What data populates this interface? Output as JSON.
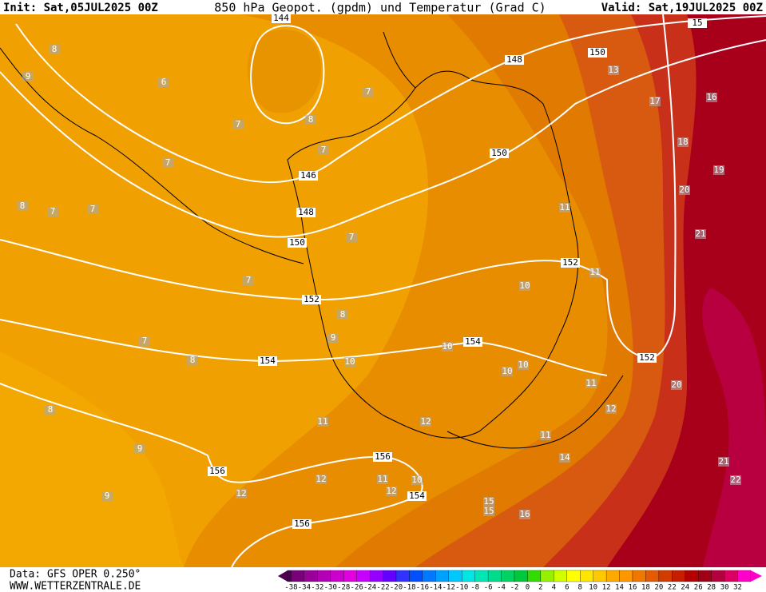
{
  "header": {
    "init": "Init: Sat,05JUL2025 00Z",
    "title": "850 hPa Geopot. (gpdm) und Temperatur (Grad C)",
    "valid": "Valid: Sat,19JUL2025 00Z"
  },
  "map": {
    "geopotential_labels": [
      144,
      148,
      150,
      146,
      148,
      150,
      150,
      152,
      152,
      154,
      154,
      152,
      156,
      156,
      154,
      156,
      15
    ],
    "temperature_labels": [
      8,
      9,
      6,
      7,
      8,
      7,
      7,
      7,
      8,
      7,
      7,
      7,
      7,
      8,
      9,
      7,
      8,
      10,
      10,
      10,
      10,
      10,
      11,
      11,
      11,
      12,
      11,
      12,
      11,
      8,
      9,
      9,
      12,
      12,
      11,
      10,
      12,
      15,
      15,
      16,
      14,
      13,
      17,
      16,
      18,
      19,
      20,
      21,
      20,
      21,
      22
    ]
  },
  "colorbar": {
    "labels": [
      -38,
      -34,
      -32,
      -30,
      -28,
      -26,
      -24,
      -22,
      -20,
      -18,
      -16,
      -14,
      -12,
      -10,
      -8,
      -6,
      -4,
      -2,
      0,
      2,
      4,
      6,
      8,
      10,
      12,
      14,
      16,
      18,
      20,
      22,
      24,
      26,
      28,
      30,
      32
    ],
    "colors": [
      "#4b0050",
      "#7a007a",
      "#9a009a",
      "#b400b4",
      "#cc00cc",
      "#e000e0",
      "#c800ff",
      "#9600ff",
      "#6400ff",
      "#3232ff",
      "#0050ff",
      "#0078ff",
      "#00a0ff",
      "#00c8ff",
      "#00e6e6",
      "#00e6b4",
      "#00dc8c",
      "#00d264",
      "#00c83c",
      "#32dc00",
      "#96f000",
      "#d2ff00",
      "#ffff00",
      "#ffe600",
      "#ffc800",
      "#ffaa00",
      "#ff9600",
      "#f07800",
      "#e65a00",
      "#d23c00",
      "#c81e00",
      "#b40000",
      "#a00014",
      "#b4003c",
      "#dc0064",
      "#ff00c8"
    ]
  },
  "footer": {
    "source": "Data: GFS OPER 0.250°",
    "site": "WWW.WETTERZENTRALE.DE"
  }
}
